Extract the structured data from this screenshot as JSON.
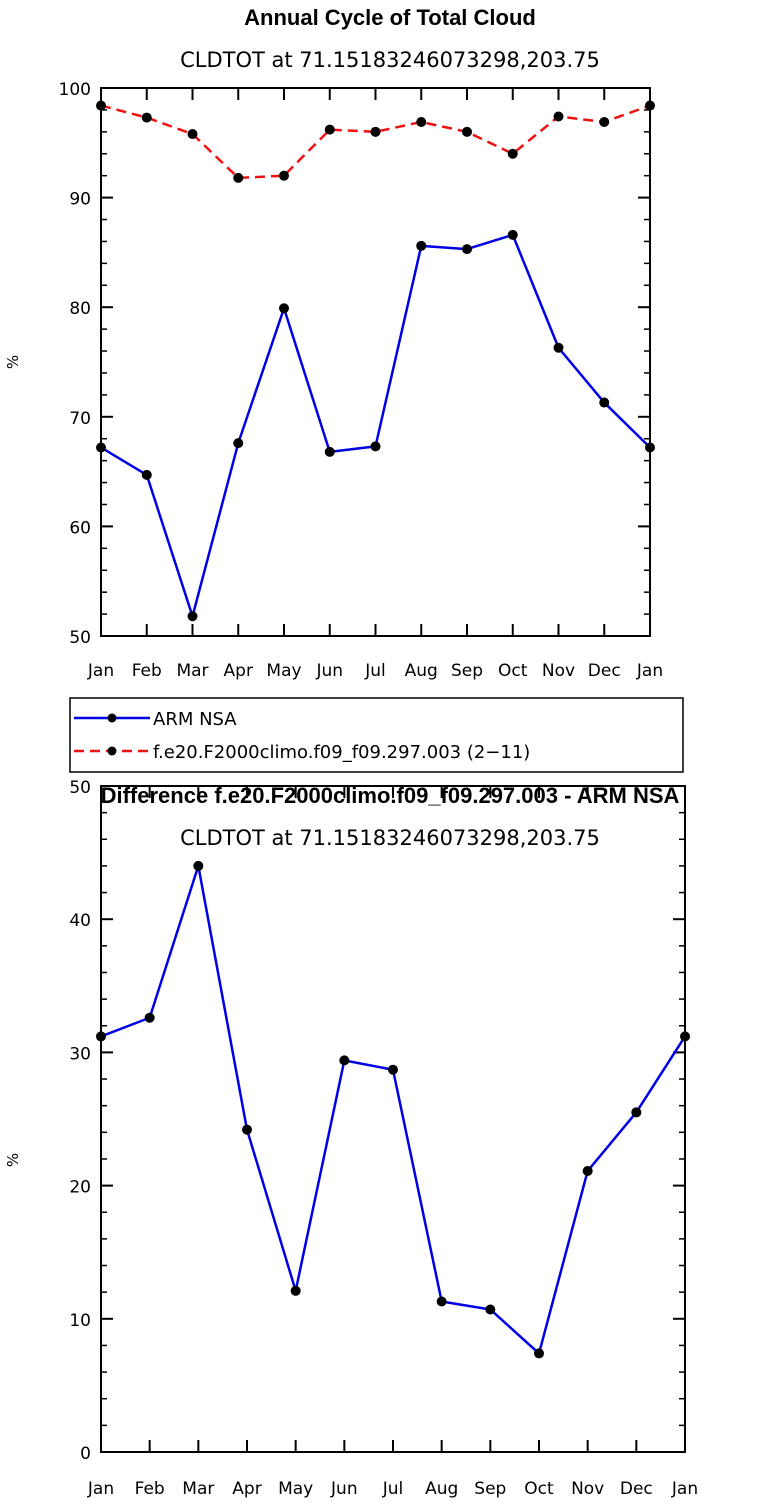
{
  "colors": {
    "arm": "#0000e6",
    "model": "#ee1111",
    "marker": "#000000"
  },
  "chart_data": [
    {
      "type": "line",
      "title": "Annual Cycle of Total Cloud",
      "subtitle": "CLDTOT at 71.15183246073298,203.75",
      "ylabel": "%",
      "xlabel": "",
      "categories": [
        "Jan",
        "Feb",
        "Mar",
        "Apr",
        "May",
        "Jun",
        "Jul",
        "Aug",
        "Sep",
        "Oct",
        "Nov",
        "Dec",
        "Jan"
      ],
      "ylim": [
        50,
        100
      ],
      "yticks": [
        50,
        60,
        70,
        80,
        90,
        100
      ],
      "series": [
        {
          "name": "ARM NSA",
          "style": "solid",
          "color": "#0000e6",
          "values": [
            67.2,
            64.7,
            51.8,
            67.6,
            79.9,
            66.8,
            67.3,
            85.6,
            85.3,
            86.6,
            76.3,
            71.3,
            67.2
          ]
        },
        {
          "name": "f.e20.F2000climo.f09_f09.297.003 (2−11)",
          "style": "dashed",
          "color": "#ee1111",
          "values": [
            98.4,
            97.3,
            95.8,
            91.8,
            92.0,
            96.2,
            96.0,
            96.9,
            96.0,
            94.0,
            97.4,
            96.9,
            98.4
          ]
        }
      ],
      "legend": "below"
    },
    {
      "type": "line",
      "title": "Difference f.e20.F2000climo.f09_f09.297.003 - ARM NSA",
      "subtitle": "CLDTOT at 71.15183246073298,203.75",
      "ylabel": "%",
      "xlabel": "",
      "categories": [
        "Jan",
        "Feb",
        "Mar",
        "Apr",
        "May",
        "Jun",
        "Jul",
        "Aug",
        "Sep",
        "Oct",
        "Nov",
        "Dec",
        "Jan"
      ],
      "ylim": [
        0,
        50
      ],
      "yticks": [
        0,
        10,
        20,
        30,
        40,
        50
      ],
      "series": [
        {
          "name": "Difference",
          "style": "solid",
          "color": "#0000e6",
          "values": [
            31.2,
            32.6,
            44.0,
            24.2,
            12.1,
            29.4,
            28.7,
            11.3,
            10.7,
            7.4,
            21.1,
            25.5,
            31.2
          ]
        }
      ]
    }
  ]
}
